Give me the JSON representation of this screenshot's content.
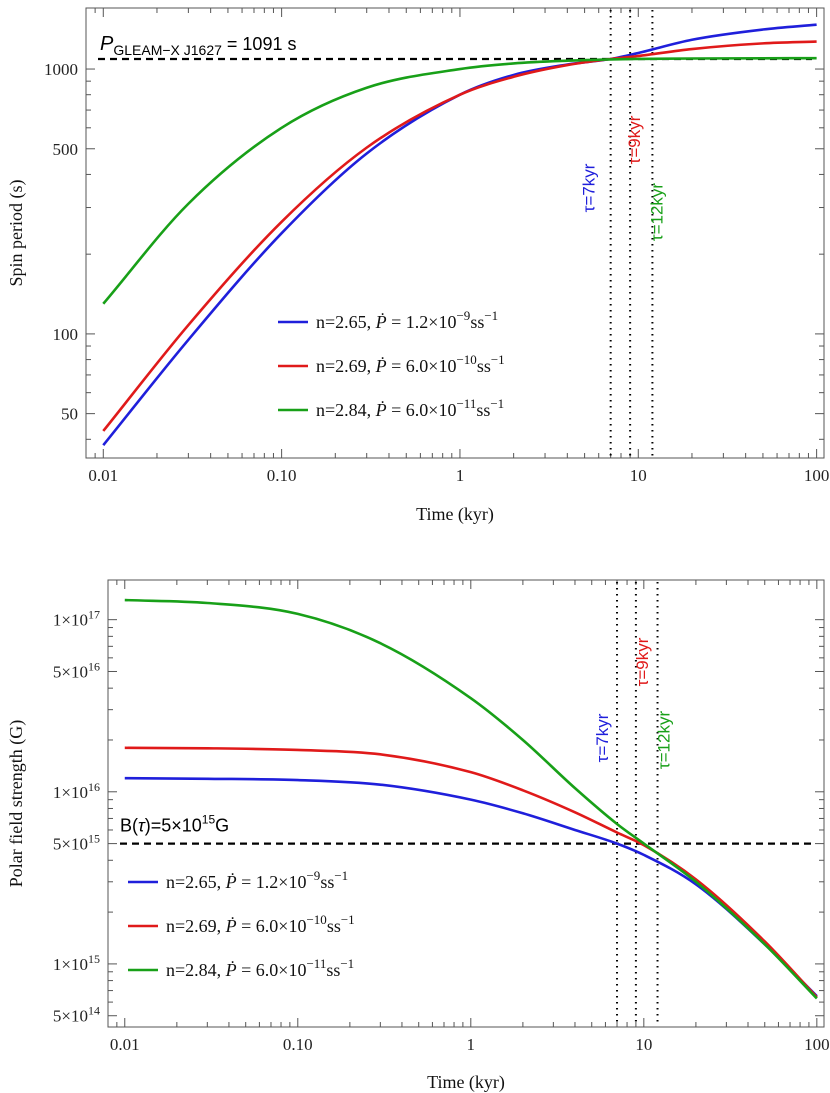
{
  "chart_data": [
    {
      "type": "line",
      "title": "",
      "xlabel": "Time (kyr)",
      "ylabel": "Spin period (s)",
      "xscale": "log",
      "yscale": "log",
      "xlim": [
        0.008,
        110
      ],
      "ylim": [
        34,
        1700
      ],
      "xticks": [
        {
          "v": 0.01,
          "label": "0.01"
        },
        {
          "v": 0.1,
          "label": "0.10"
        },
        {
          "v": 1,
          "label": "1"
        },
        {
          "v": 10,
          "label": "10"
        },
        {
          "v": 100,
          "label": "100"
        }
      ],
      "yticks": [
        {
          "v": 50,
          "label": "50"
        },
        {
          "v": 100,
          "label": "100"
        },
        {
          "v": 500,
          "label": "500"
        },
        {
          "v": 1000,
          "label": "1000"
        }
      ],
      "reference_line": {
        "y": 1091,
        "label_main": "P",
        "label_sub": "GLEAM−X J1627",
        "label_rest": " = 1091 s"
      },
      "tau_markers": [
        {
          "x": 7,
          "label": "τ=7kyr",
          "color": "#1f1fdb"
        },
        {
          "x": 9,
          "label": "τ=9kyr",
          "color": "#e01a1a"
        },
        {
          "x": 12,
          "label": "τ=12kyr",
          "color": "#18a018"
        }
      ],
      "legend_position": "bottom-center",
      "series": [
        {
          "name": "n=2.65",
          "pdot_label": "1.2×10",
          "pdot_exp": "−9",
          "unit": "ss",
          "unit_exp": "−1",
          "color": "#1f1fdb",
          "x": [
            0.01,
            0.03,
            0.1,
            0.3,
            1,
            2,
            4,
            7,
            10,
            20,
            50,
            100
          ],
          "y": [
            38,
            95,
            240,
            480,
            800,
            950,
            1040,
            1091,
            1150,
            1290,
            1410,
            1470
          ]
        },
        {
          "name": "n=2.69",
          "pdot_label": "6.0×10",
          "pdot_exp": "−10",
          "unit": "ss",
          "unit_exp": "−1",
          "color": "#e01a1a",
          "x": [
            0.01,
            0.03,
            0.1,
            0.3,
            1,
            2,
            4,
            7,
            10,
            20,
            50,
            100
          ],
          "y": [
            43,
            108,
            265,
            505,
            800,
            935,
            1035,
            1091,
            1120,
            1190,
            1250,
            1270
          ]
        },
        {
          "name": "n=2.84",
          "pdot_label": "6.0×10",
          "pdot_exp": "−11",
          "unit": "ss",
          "unit_exp": "−1",
          "color": "#18a018",
          "x": [
            0.01,
            0.03,
            0.1,
            0.3,
            1,
            2,
            4,
            7,
            10,
            20,
            50,
            100
          ],
          "y": [
            130,
            310,
            600,
            850,
            1000,
            1050,
            1075,
            1087,
            1092,
            1096,
            1098,
            1099
          ]
        }
      ]
    },
    {
      "type": "line",
      "title": "",
      "xlabel": "Time (kyr)",
      "ylabel": "Polar field strength (G)",
      "xscale": "log",
      "yscale": "log",
      "xlim": [
        0.008,
        110
      ],
      "ylim": [
        430000000000000.0,
        1.7e+17
      ],
      "xticks": [
        {
          "v": 0.01,
          "label": "0.01"
        },
        {
          "v": 0.1,
          "label": "0.10"
        },
        {
          "v": 1,
          "label": "1"
        },
        {
          "v": 10,
          "label": "10"
        },
        {
          "v": 100,
          "label": "100"
        }
      ],
      "yticks": [
        {
          "v": 500000000000000.0,
          "base": "5×10",
          "exp": "14"
        },
        {
          "v": 1000000000000000.0,
          "base": "1×10",
          "exp": "15"
        },
        {
          "v": 5000000000000000.0,
          "base": "5×10",
          "exp": "15"
        },
        {
          "v": 1e+16,
          "base": "1×10",
          "exp": "16"
        },
        {
          "v": 5e+16,
          "base": "5×10",
          "exp": "16"
        },
        {
          "v": 1e+17,
          "base": "1×10",
          "exp": "17"
        }
      ],
      "reference_line": {
        "y": 5000000000000000.0,
        "label_a": "B(",
        "label_tau": "τ",
        "label_b": ")=5×10",
        "label_exp": "15",
        "label_c": "G"
      },
      "tau_markers": [
        {
          "x": 7,
          "label": "τ=7kyr",
          "color": "#1f1fdb"
        },
        {
          "x": 9,
          "label": "τ=9kyr",
          "color": "#e01a1a"
        },
        {
          "x": 12,
          "label": "τ=12kyr",
          "color": "#18a018"
        }
      ],
      "legend_position": "bottom-left",
      "series": [
        {
          "name": "n=2.65",
          "pdot_label": "1.2×10",
          "pdot_exp": "−9",
          "unit": "ss",
          "unit_exp": "−1",
          "color": "#1f1fdb",
          "x": [
            0.01,
            0.03,
            0.1,
            0.3,
            1,
            2,
            4,
            7,
            10,
            20,
            50,
            100
          ],
          "y": [
            1.2e+16,
            1.19e+16,
            1.17e+16,
            1.1e+16,
            9000000000000000.0,
            7500000000000000.0,
            6000000000000000.0,
            5000000000000000.0,
            4300000000000000.0,
            2900000000000000.0,
            1300000000000000.0,
            650000000000000.0
          ]
        },
        {
          "name": "n=2.69",
          "pdot_label": "6.0×10",
          "pdot_exp": "−10",
          "unit": "ss",
          "unit_exp": "−1",
          "color": "#e01a1a",
          "x": [
            0.01,
            0.03,
            0.1,
            0.3,
            1,
            2,
            4,
            7,
            10,
            20,
            50,
            100
          ],
          "y": [
            1.8e+16,
            1.79e+16,
            1.75e+16,
            1.65e+16,
            1.3e+16,
            1.02e+16,
            7600000000000000.0,
            5800000000000000.0,
            4900000000000000.0,
            3100000000000000.0,
            1350000000000000.0,
            640000000000000.0
          ]
        },
        {
          "name": "n=2.84",
          "pdot_label": "6.0×10",
          "pdot_exp": "−11",
          "unit": "ss",
          "unit_exp": "−1",
          "color": "#18a018",
          "x": [
            0.01,
            0.03,
            0.1,
            0.3,
            1,
            2,
            4,
            7,
            10,
            20,
            50,
            100
          ],
          "y": [
            1.3e+17,
            1.25e+17,
            1.08e+17,
            7.3e+16,
            3.5e+16,
            2e+16,
            1.05e+16,
            6500000000000000.0,
            5000000000000000.0,
            3000000000000000.0,
            1300000000000000.0,
            630000000000000.0
          ]
        }
      ]
    }
  ]
}
